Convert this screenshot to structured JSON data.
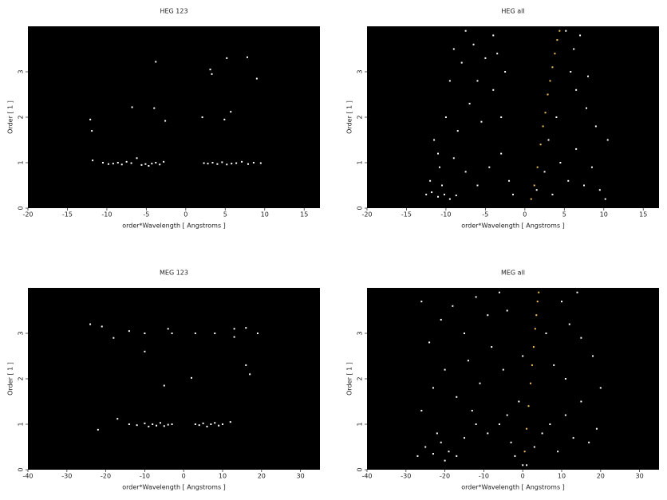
{
  "chart_data": [
    {
      "type": "scatter",
      "title": "HEG 123",
      "xlabel": "order*Wavelength [ Angstroms ]",
      "ylabel": "Order [ 1 ]",
      "xlim": [
        -20,
        17
      ],
      "ylim": [
        0,
        4
      ],
      "xticks": [
        -20,
        -15,
        -10,
        -5,
        0,
        5,
        10,
        15
      ],
      "yticks": [
        0,
        1,
        2,
        3
      ],
      "series": [
        {
          "color": "#ffffff",
          "x": [
            -11.8,
            -10.5,
            -9.8,
            -9.2,
            -8.6,
            -8.1,
            -7.5,
            -6.9,
            -6.2,
            -5.6,
            -5.1,
            -4.7,
            -4.3,
            -3.8,
            -3.3,
            -2.8,
            2.3,
            2.8,
            3.4,
            4.0,
            4.6,
            5.2,
            5.8,
            6.4,
            7.1,
            7.9,
            8.6,
            9.5,
            -12.1,
            -11.9,
            -6.8,
            -4.0,
            -2.6,
            2.1,
            4.9,
            5.7,
            -3.8,
            3.1,
            5.2,
            7.8,
            9.0,
            3.3
          ],
          "values": [
            1.05,
            1.0,
            0.97,
            0.98,
            1.0,
            0.96,
            1.02,
            0.99,
            1.1,
            0.95,
            0.97,
            0.93,
            0.98,
            1.0,
            0.96,
            1.02,
            0.99,
            0.98,
            1.0,
            0.97,
            1.01,
            0.96,
            0.98,
            0.99,
            1.02,
            0.97,
            1.0,
            0.99,
            1.95,
            1.7,
            2.22,
            2.2,
            1.92,
            2.0,
            1.95,
            2.12,
            3.22,
            3.05,
            3.3,
            3.32,
            2.85,
            2.95
          ]
        }
      ]
    },
    {
      "type": "scatter",
      "title": "HEG all",
      "xlabel": "order*Wavelength [ Angstroms ]",
      "ylabel": "Order [ 1 ]",
      "xlim": [
        -20,
        17
      ],
      "ylim": [
        0,
        4
      ],
      "xticks": [
        -20,
        -15,
        -10,
        -5,
        0,
        5,
        10,
        15
      ],
      "yticks": [
        0,
        1,
        2,
        3
      ],
      "series": [
        {
          "color": "#ffffff",
          "x": [
            -12.5,
            -11.8,
            -11,
            -10.2,
            -9.5,
            -8.7,
            -12,
            -10.8,
            -9,
            -7.5,
            -6,
            -4.5,
            -3,
            -2,
            -1.5,
            -11.5,
            -10,
            -8.5,
            -7,
            -5.5,
            -4,
            -3,
            -2.5,
            -9.5,
            -8,
            -6.5,
            -5,
            -4,
            -7.5,
            -3.5,
            -9,
            -6,
            -11,
            -10.5,
            1.5,
            2.5,
            3.5,
            4.5,
            5.5,
            6.5,
            7.5,
            8.5,
            9.5,
            10.2,
            10.5,
            9,
            7.8,
            6.5,
            5.8,
            6.2,
            7,
            5.2,
            8,
            3,
            4
          ],
          "values": [
            0.3,
            0.35,
            0.25,
            0.3,
            0.2,
            0.28,
            0.6,
            0.9,
            1.1,
            0.8,
            0.5,
            0.9,
            1.2,
            0.6,
            0.3,
            1.5,
            2.0,
            1.7,
            2.3,
            1.9,
            2.6,
            2.0,
            3.0,
            2.8,
            3.2,
            3.6,
            3.3,
            3.8,
            3.9,
            3.4,
            3.5,
            2.8,
            1.2,
            0.5,
            0.4,
            0.8,
            0.3,
            1.0,
            0.6,
            1.3,
            0.5,
            0.9,
            0.4,
            0.2,
            1.5,
            1.8,
            2.2,
            2.6,
            3.0,
            3.5,
            3.8,
            3.9,
            2.9,
            1.5,
            2.0
          ]
        },
        {
          "color": "#f5c060",
          "x": [
            0.8,
            1.2,
            1.6,
            2.0,
            2.3,
            2.6,
            2.9,
            3.2,
            3.5,
            3.8,
            4.1,
            4.4
          ],
          "values": [
            0.2,
            0.5,
            0.9,
            1.4,
            1.8,
            2.1,
            2.5,
            2.8,
            3.1,
            3.4,
            3.7,
            3.9
          ]
        }
      ]
    },
    {
      "type": "scatter",
      "title": "MEG 123",
      "xlabel": "order*Wavelength [ Angstroms ]",
      "ylabel": "Order [ 1 ]",
      "xlim": [
        -40,
        35
      ],
      "ylim": [
        0,
        4
      ],
      "xticks": [
        -40,
        -30,
        -20,
        -10,
        0,
        10,
        20,
        30
      ],
      "yticks": [
        0,
        1,
        2,
        3
      ],
      "series": [
        {
          "color": "#ffffff",
          "x": [
            -22,
            -17,
            -14,
            -12,
            -10,
            -9,
            -8,
            -7,
            -6,
            -5,
            -4,
            -3,
            3,
            4,
            5,
            6,
            7,
            8,
            9,
            10,
            12,
            -10,
            -5,
            2,
            16,
            17,
            -24,
            -21,
            -18,
            -14,
            -10,
            -4,
            -3,
            3,
            8,
            13,
            16,
            19,
            13
          ],
          "values": [
            0.88,
            1.12,
            1.0,
            0.98,
            1.02,
            0.95,
            1.0,
            0.97,
            1.03,
            0.96,
            0.99,
            1.0,
            1.0,
            0.98,
            1.02,
            0.95,
            1.0,
            1.03,
            0.97,
            1.0,
            1.05,
            2.6,
            1.85,
            2.02,
            2.3,
            2.1,
            3.2,
            3.15,
            2.9,
            3.05,
            3.0,
            3.1,
            3.0,
            3.0,
            3.0,
            3.1,
            3.12,
            3.0,
            2.92
          ]
        }
      ]
    },
    {
      "type": "scatter",
      "title": "MEG all",
      "xlabel": "order*Wavelength [ Angstroms ]",
      "ylabel": "Order [ 1 ]",
      "xlim": [
        -40,
        35
      ],
      "ylim": [
        0,
        4
      ],
      "xticks": [
        -40,
        -30,
        -20,
        -10,
        0,
        10,
        20,
        30
      ],
      "yticks": [
        0,
        1,
        2,
        3
      ],
      "series": [
        {
          "color": "#ffffff",
          "x": [
            -27,
            -25,
            -23,
            -21,
            -19,
            -17,
            -22,
            -20,
            -15,
            -12,
            -9,
            -6,
            -4,
            -3,
            -26,
            -23,
            -20,
            -17,
            -14,
            -11,
            -8,
            -5,
            -24,
            -21,
            -18,
            -15,
            -12,
            -9,
            -6,
            -4,
            -26,
            -13,
            -2,
            0,
            1,
            3,
            5,
            7,
            9,
            11,
            13,
            15,
            17,
            19,
            20,
            18,
            15,
            12,
            10,
            8,
            6,
            14,
            11,
            -1,
            0
          ],
          "values": [
            0.3,
            0.5,
            0.35,
            0.6,
            0.4,
            0.3,
            0.8,
            0.2,
            0.7,
            1.0,
            0.8,
            1.0,
            1.2,
            0.6,
            1.3,
            1.8,
            2.2,
            1.6,
            2.4,
            1.9,
            2.7,
            2.2,
            2.8,
            3.3,
            3.6,
            3.0,
            3.8,
            3.4,
            3.9,
            3.5,
            3.7,
            1.3,
            0.3,
            0.1,
            0.1,
            0.5,
            0.8,
            1.0,
            0.4,
            1.2,
            0.7,
            1.5,
            0.6,
            0.9,
            1.8,
            2.5,
            2.9,
            3.2,
            3.7,
            2.3,
            3.0,
            3.9,
            2.0,
            1.5,
            2.5
          ]
        },
        {
          "color": "#f5c060",
          "x": [
            0.5,
            1.0,
            1.5,
            2.0,
            2.4,
            2.8,
            3.2,
            3.5,
            3.8,
            4.1
          ],
          "values": [
            0.4,
            0.9,
            1.4,
            1.9,
            2.3,
            2.7,
            3.1,
            3.4,
            3.7,
            3.9
          ]
        }
      ]
    }
  ]
}
